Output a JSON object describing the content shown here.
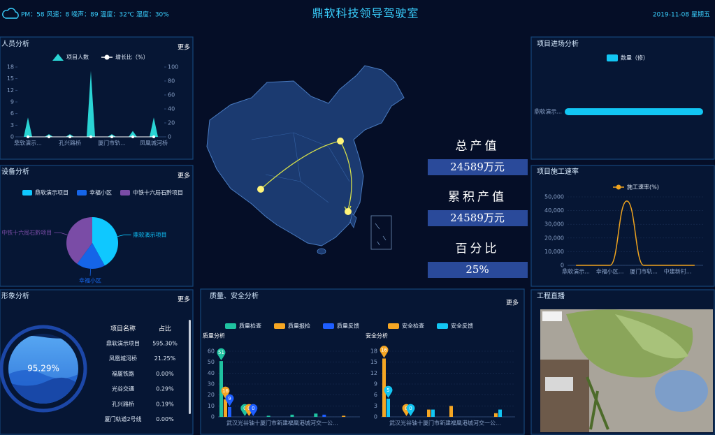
{
  "header": {
    "status": "PM：58   风速：8   噪声：89   温度：32℃   湿度：30%",
    "title": "鼎软科技领导驾驶室",
    "date": "2019-11-08 星期五"
  },
  "personnel": {
    "title": "人员分析",
    "more": "更多",
    "chart": {
      "type": "area",
      "categories": [
        "鼎软演示...",
        null,
        "孔兴路桥",
        null,
        "厦门市轨...",
        null,
        "凤凰城河桥"
      ],
      "series": [
        {
          "name": "项目人数",
          "color": "#2ad4d4",
          "values": [
            5,
            0.7,
            0.7,
            17,
            0.7,
            1.5,
            5
          ]
        },
        {
          "name": "增长比（%）",
          "color": "#ffffff",
          "axis": "y2",
          "values": [
            0,
            0,
            0,
            0,
            0,
            0,
            0
          ]
        }
      ],
      "ylim": [
        0,
        18
      ],
      "yticks": [
        0,
        3,
        6,
        9,
        12,
        15,
        18
      ],
      "y2lim": [
        0,
        100
      ],
      "y2ticks": [
        0,
        20,
        40,
        60,
        80,
        100
      ]
    }
  },
  "equipment": {
    "title": "设备分析",
    "more": "更多",
    "chart": {
      "type": "pie",
      "categories": [
        "鼎软演示项目",
        "幸福小区",
        "中铁十六局石黔项目"
      ],
      "values": [
        42,
        18,
        40
      ],
      "colors": [
        "#0fc8ff",
        "#1565e8",
        "#7a4ca6"
      ]
    }
  },
  "progress": {
    "title": "形象分析",
    "more": "更多",
    "gauge": {
      "type": "gauge",
      "values": [
        95.29
      ],
      "value_labels": [
        "95.29%"
      ],
      "ylim": [
        0,
        100
      ],
      "color": "#3b8de8"
    },
    "table": {
      "header": [
        "项目名称",
        "占比"
      ],
      "rows": [
        [
          "鼎软演示项目",
          "595.30%"
        ],
        [
          "凤凰城河桥",
          "21.25%"
        ],
        [
          "福厦铁路",
          "0.00%"
        ],
        [
          "光谷交通",
          "0.29%"
        ],
        [
          "孔兴路桥",
          "0.19%"
        ],
        [
          "厦门轨道2号线",
          "0.00%"
        ]
      ]
    }
  },
  "stats": [
    {
      "label": "总产值",
      "value": "24589万元"
    },
    {
      "label": "累积产值",
      "value": "24589万元"
    },
    {
      "label": "百分比",
      "value": "25%"
    }
  ],
  "entry": {
    "title": "项目进场分析",
    "chart": {
      "type": "hbar",
      "categories": [
        "鼎软演示..."
      ],
      "series": [
        {
          "name": "数量（修）",
          "color": "#12c6f3",
          "values": [
            6
          ]
        }
      ],
      "xlim": [
        0,
        6
      ]
    }
  },
  "speed": {
    "title": "项目施工速率",
    "chart": {
      "type": "line",
      "categories": [
        "鼎软演示...",
        null,
        "幸福小区...",
        null,
        "厦门市轨...",
        null,
        "中建新村...",
        null
      ],
      "series": [
        {
          "name": "施工速率(%)",
          "color": "#f0a41e",
          "values": [
            0,
            0,
            0,
            47000,
            0,
            0,
            0,
            0
          ]
        }
      ],
      "ylim": [
        0,
        50000
      ],
      "yticks": [
        0,
        {
          "value": 10000,
          "label": "10,000"
        },
        {
          "value": 20000,
          "label": "20,000"
        },
        {
          "value": 30000,
          "label": "30,000"
        },
        {
          "value": 40000,
          "label": "40,000"
        },
        {
          "value": 50000,
          "label": "50,000"
        }
      ],
      "grid": true
    }
  },
  "quality_safety": {
    "title": "质量、安全分析",
    "more": "更多",
    "charts": [
      {
        "type": "bar",
        "subtitle": "质量分析",
        "categories": [
          "武汉光谷轴十厦门市新建福凰港城河交一公...",
          null,
          null,
          null,
          null,
          null
        ],
        "series": [
          {
            "name": "质量检查",
            "color": "#1fc2a0",
            "values": [
              51,
              0,
              1,
              2,
              3,
              0
            ]
          },
          {
            "name": "质量报检",
            "color": "#f5a623",
            "values": [
              16,
              0,
              0,
              0,
              0,
              1
            ]
          },
          {
            "name": "质量反馈",
            "color": "#1e5eff",
            "values": [
              9,
              0,
              0,
              0,
              2,
              0
            ]
          }
        ],
        "ylim": [
          0,
          60
        ],
        "yticks": [
          0,
          10,
          20,
          30,
          40,
          50,
          60
        ],
        "grid": true
      },
      {
        "type": "bar",
        "subtitle": "安全分析",
        "categories": [
          "武汉光谷轴十厦门市新建福凰港城河交一公...",
          null,
          null,
          null,
          null,
          null
        ],
        "series": [
          {
            "name": "安全检查",
            "color": "#f5a623",
            "values": [
              16,
              0,
              2,
              3,
              0,
              1
            ]
          },
          {
            "name": "安全反馈",
            "color": "#12c6f3",
            "values": [
              5,
              0,
              2,
              0,
              0,
              2
            ]
          }
        ],
        "ylim": [
          0,
          18
        ],
        "yticks": [
          0,
          3,
          6,
          9,
          12,
          15,
          18
        ],
        "grid": true
      }
    ]
  },
  "live": {
    "title": "工程直播"
  }
}
